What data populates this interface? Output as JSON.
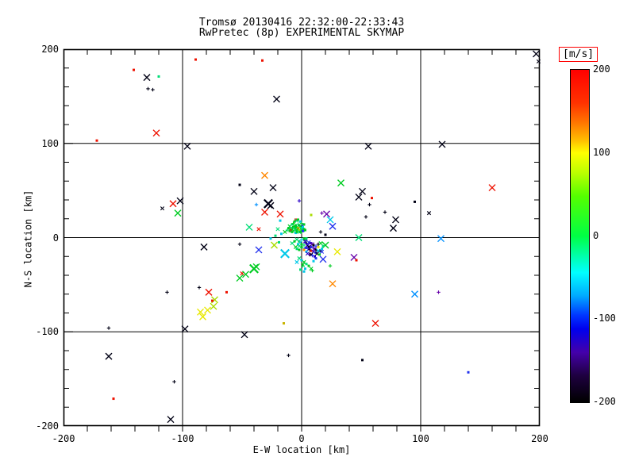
{
  "title": {
    "line1": "Tromsø 20130416 22:32:00-22:33:43",
    "line2": "RwPretec (8p) EXPERIMENTAL SKYMAP"
  },
  "chart_data": {
    "type": "scatter",
    "title": "Tromsø 20130416 22:32:00-22:33:43 / RwPretec (8p) EXPERIMENTAL SKYMAP",
    "xlabel": "E-W location [km]",
    "ylabel": "N-S location [km]",
    "xlim": [
      -200,
      200
    ],
    "ylim": [
      -200,
      200
    ],
    "xticks": [
      -200,
      -100,
      0,
      100,
      200
    ],
    "yticks": [
      -200,
      -100,
      0,
      100,
      200
    ],
    "minor_tick_km": 20,
    "grid": true,
    "background": "#ffffff",
    "axis_color": "#000000",
    "colorbar": {
      "label": "[m/s]",
      "ticks": [
        200,
        100,
        0,
        -100,
        -200
      ],
      "min": -200,
      "max": 200,
      "label_box_color": "#ff0000",
      "stops": [
        [
          "0%",
          "#ff0000"
        ],
        [
          "10%",
          "#ff3300"
        ],
        [
          "16%",
          "#ff7700"
        ],
        [
          "21%",
          "#ffbb00"
        ],
        [
          "25%",
          "#ffff00"
        ],
        [
          "31%",
          "#bbff00"
        ],
        [
          "38%",
          "#55ff00"
        ],
        [
          "50%",
          "#00ff44"
        ],
        [
          "56%",
          "#00ffaa"
        ],
        [
          "61%",
          "#00ffff"
        ],
        [
          "68%",
          "#00aaff"
        ],
        [
          "74%",
          "#0033ff"
        ],
        [
          "78%",
          "#0000ee"
        ],
        [
          "85%",
          "#4400aa"
        ],
        [
          "92%",
          "#1e0040"
        ],
        [
          "100%",
          "#000000"
        ]
      ]
    },
    "palette": {
      "r": "#ee1100",
      "or": "#ff8800",
      "ye": "#e8e800",
      "yg": "#aadd00",
      "dy": "#c8b400",
      "g": "#00cc22",
      "sg": "#00dd77",
      "cy": "#00c8e8",
      "db": "#0090ff",
      "b": "#2233ee",
      "nv": "#2a00c8",
      "vi": "#6600aa",
      "bk": "#000014"
    },
    "point_format": [
      "x_km",
      "y_km",
      "color_key",
      "marker(x|+|d)",
      "size(1-3)"
    ],
    "points": [
      [
        -89,
        189,
        "r",
        "d",
        1
      ],
      [
        -33,
        188,
        "r",
        "d",
        1
      ],
      [
        197,
        195,
        "bk",
        "x",
        2
      ],
      [
        199,
        187,
        "bk",
        "x",
        1
      ],
      [
        -141,
        178,
        "r",
        "d",
        1
      ],
      [
        -130,
        170,
        "bk",
        "x",
        2
      ],
      [
        -120,
        171,
        "sg",
        "d",
        1
      ],
      [
        -129,
        158,
        "bk",
        "+",
        1
      ],
      [
        -125,
        157,
        "bk",
        "+",
        1
      ],
      [
        -21,
        147,
        "bk",
        "x",
        2
      ],
      [
        -122,
        111,
        "r",
        "x",
        2
      ],
      [
        -172,
        103,
        "r",
        "d",
        1
      ],
      [
        -96,
        97,
        "bk",
        "x",
        2
      ],
      [
        56,
        97,
        "bk",
        "x",
        2
      ],
      [
        118,
        99,
        "bk",
        "x",
        2
      ],
      [
        -31,
        66,
        "or",
        "x",
        2
      ],
      [
        -52,
        56,
        "bk",
        "d",
        1
      ],
      [
        -40,
        49,
        "bk",
        "x",
        2
      ],
      [
        -24,
        53,
        "bk",
        "x",
        2
      ],
      [
        -38,
        35,
        "db",
        "+",
        1
      ],
      [
        -28,
        36,
        "bk",
        "x",
        3
      ],
      [
        -26,
        34,
        "bk",
        "x",
        2
      ],
      [
        -31,
        27,
        "r",
        "x",
        2
      ],
      [
        -18,
        25,
        "r",
        "x",
        2
      ],
      [
        -117,
        31,
        "bk",
        "x",
        1
      ],
      [
        -108,
        36,
        "r",
        "x",
        2
      ],
      [
        -102,
        39,
        "bk",
        "x",
        2
      ],
      [
        -104,
        26,
        "g",
        "x",
        2
      ],
      [
        33,
        58,
        "g",
        "x",
        2
      ],
      [
        160,
        53,
        "r",
        "x",
        2
      ],
      [
        51,
        49,
        "bk",
        "x",
        2
      ],
      [
        48,
        43,
        "bk",
        "x",
        2
      ],
      [
        59,
        42,
        "r",
        "d",
        1
      ],
      [
        57,
        35,
        "bk",
        "+",
        1
      ],
      [
        95,
        38,
        "bk",
        "d",
        1
      ],
      [
        70,
        27,
        "bk",
        "+",
        1
      ],
      [
        54,
        22,
        "bk",
        "+",
        1
      ],
      [
        79,
        19,
        "bk",
        "x",
        2
      ],
      [
        107,
        26,
        "bk",
        "x",
        1
      ],
      [
        77,
        10,
        "bk",
        "x",
        2
      ],
      [
        117,
        -1,
        "db",
        "x",
        2
      ],
      [
        48,
        0,
        "sg",
        "x",
        2
      ],
      [
        20,
        -8,
        "g",
        "x",
        2
      ],
      [
        30,
        -15,
        "ye",
        "x",
        2
      ],
      [
        44,
        -21,
        "vi",
        "x",
        2
      ],
      [
        46,
        -24,
        "r",
        "d",
        1
      ],
      [
        18,
        -23,
        "b",
        "x",
        2
      ],
      [
        24,
        -30,
        "g",
        "+",
        1
      ],
      [
        26,
        -49,
        "or",
        "x",
        2
      ],
      [
        95,
        -60,
        "db",
        "x",
        2
      ],
      [
        115,
        -58,
        "vi",
        "+",
        1
      ],
      [
        62,
        -91,
        "r",
        "x",
        2
      ],
      [
        -82,
        -10,
        "bk",
        "x",
        2
      ],
      [
        -52,
        -7,
        "bk",
        "+",
        1
      ],
      [
        -36,
        -13,
        "b",
        "x",
        2
      ],
      [
        -23,
        -8,
        "yg",
        "x",
        2
      ],
      [
        -14,
        -17,
        "cy",
        "x",
        3
      ],
      [
        -40,
        -33,
        "g",
        "x",
        3
      ],
      [
        -38,
        -31,
        "g",
        "x",
        2
      ],
      [
        -50,
        -38,
        "r",
        "x",
        1
      ],
      [
        -47,
        -39,
        "g",
        "x",
        2
      ],
      [
        -52,
        -43,
        "g",
        "x",
        2
      ],
      [
        -86,
        -53,
        "bk",
        "+",
        1
      ],
      [
        -78,
        -58,
        "r",
        "x",
        2
      ],
      [
        -63,
        -58,
        "r",
        "d",
        1
      ],
      [
        -73,
        -66,
        "yg",
        "x",
        2
      ],
      [
        -75,
        -67,
        "r",
        "d",
        1
      ],
      [
        -74,
        -73,
        "yg",
        "x",
        2
      ],
      [
        -79,
        -77,
        "ye",
        "x",
        2
      ],
      [
        -85,
        -79,
        "ye",
        "x",
        2
      ],
      [
        -83,
        -84,
        "ye",
        "x",
        2
      ],
      [
        -113,
        -58,
        "bk",
        "+",
        1
      ],
      [
        -162,
        -96,
        "bk",
        "+",
        1
      ],
      [
        -98,
        -97,
        "bk",
        "x",
        2
      ],
      [
        -15,
        -91,
        "dy",
        "d",
        1
      ],
      [
        -48,
        -103,
        "bk",
        "x",
        2
      ],
      [
        -162,
        -126,
        "bk",
        "x",
        2
      ],
      [
        -11,
        -125,
        "bk",
        "+",
        1
      ],
      [
        -107,
        -153,
        "bk",
        "+",
        1
      ],
      [
        -158,
        -171,
        "r",
        "d",
        1
      ],
      [
        -110,
        -193,
        "bk",
        "x",
        2
      ],
      [
        51,
        -130,
        "bk",
        "d",
        1
      ],
      [
        140,
        -143,
        "b",
        "d",
        1
      ],
      [
        17,
        26,
        "vi",
        "+",
        1
      ],
      [
        21,
        25,
        "vi",
        "x",
        2
      ],
      [
        24,
        19,
        "cy",
        "x",
        2
      ],
      [
        26,
        12,
        "b",
        "x",
        2
      ],
      [
        8,
        24,
        "yg",
        "d",
        1
      ],
      [
        -5,
        19,
        "r",
        "d",
        1
      ],
      [
        -18,
        18,
        "cy",
        "d",
        1
      ],
      [
        -44,
        11,
        "sg",
        "x",
        2
      ],
      [
        -36,
        9,
        "r",
        "x",
        1
      ],
      [
        -2,
        39,
        "nv",
        "+",
        1
      ],
      [
        -14,
        6,
        "g",
        "x",
        1
      ],
      [
        -12,
        8,
        "sg",
        "+",
        1
      ],
      [
        -11,
        10,
        "g",
        "d",
        1
      ],
      [
        -10,
        12,
        "g",
        "x",
        1
      ],
      [
        -8,
        14,
        "sg",
        "d",
        1
      ],
      [
        -7,
        15,
        "g",
        "+",
        1
      ],
      [
        -6,
        17,
        "g",
        "d",
        1
      ],
      [
        -4,
        18,
        "sg",
        "x",
        1
      ],
      [
        -3,
        19,
        "g",
        "d",
        1
      ],
      [
        -1,
        17,
        "cy",
        "d",
        1
      ],
      [
        0,
        15,
        "g",
        "+",
        1
      ],
      [
        -9,
        10,
        "sg",
        "x",
        1
      ],
      [
        -7,
        11,
        "g",
        "d",
        1
      ],
      [
        -6,
        12,
        "g",
        "x",
        1
      ],
      [
        -5,
        13,
        "g",
        "d",
        1
      ],
      [
        -3,
        14,
        "sg",
        "+",
        1
      ],
      [
        -2,
        13,
        "g",
        "d",
        1
      ],
      [
        -1,
        12,
        "g",
        "x",
        1
      ],
      [
        1,
        13,
        "b",
        "+",
        1
      ],
      [
        2,
        14,
        "g",
        "d",
        1
      ],
      [
        -10,
        7,
        "g",
        "d",
        1
      ],
      [
        -9,
        8,
        "r",
        "d",
        1
      ],
      [
        -8,
        9,
        "g",
        "x",
        1
      ],
      [
        -6,
        10,
        "sg",
        "d",
        1
      ],
      [
        -5,
        11,
        "g",
        "d",
        1
      ],
      [
        -4,
        11,
        "g",
        "x",
        1
      ],
      [
        -3,
        10,
        "or",
        "d",
        1
      ],
      [
        -1,
        9,
        "g",
        "+",
        1
      ],
      [
        0,
        10,
        "sg",
        "d",
        1
      ],
      [
        1,
        11,
        "cy",
        "d",
        1
      ],
      [
        -8,
        6,
        "g",
        "d",
        1
      ],
      [
        -7,
        7,
        "g",
        "x",
        1
      ],
      [
        -5,
        8,
        "sg",
        "d",
        1
      ],
      [
        -4,
        8,
        "g",
        "d",
        1
      ],
      [
        -3,
        9,
        "g",
        "+",
        1
      ],
      [
        -2,
        8,
        "yg",
        "d",
        1
      ],
      [
        0,
        7,
        "g",
        "d",
        1
      ],
      [
        1,
        8,
        "sg",
        "x",
        1
      ],
      [
        2,
        9,
        "g",
        "d",
        1
      ],
      [
        -5,
        5,
        "cy",
        "d",
        1
      ],
      [
        -4,
        6,
        "g",
        "d",
        1
      ],
      [
        -2,
        6,
        "sg",
        "x",
        1
      ],
      [
        -1,
        6,
        "g",
        "d",
        1
      ],
      [
        0,
        6,
        "g",
        "+",
        1
      ],
      [
        1,
        7,
        "b",
        "d",
        1
      ],
      [
        3,
        8,
        "g",
        "d",
        1
      ],
      [
        -20,
        9,
        "sg",
        "x",
        1
      ],
      [
        -17,
        4,
        "cy",
        "d",
        1
      ],
      [
        -26,
        -1,
        "cy",
        "d",
        1
      ],
      [
        -22,
        2,
        "sg",
        "d",
        1
      ],
      [
        -19,
        -5,
        "sg",
        "d",
        1
      ],
      [
        16,
        6,
        "bk",
        "+",
        1
      ],
      [
        20,
        3,
        "bk",
        "d",
        1
      ],
      [
        -4,
        -2,
        "sg",
        "x",
        1
      ],
      [
        -2,
        -4,
        "g",
        "d",
        1
      ],
      [
        -1,
        -5,
        "cy",
        "x",
        1
      ],
      [
        0,
        -7,
        "g",
        "d",
        1
      ],
      [
        2,
        -8,
        "sg",
        "+",
        1
      ],
      [
        -3,
        -7,
        "cy",
        "d",
        1
      ],
      [
        -2,
        -9,
        "sg",
        "x",
        1
      ],
      [
        0,
        -10,
        "g",
        "d",
        1
      ],
      [
        2,
        -12,
        "cy",
        "d",
        1
      ],
      [
        -5,
        -10,
        "g",
        "x",
        1
      ],
      [
        -4,
        -12,
        "sg",
        "d",
        1
      ],
      [
        -2,
        -13,
        "g",
        "d",
        1
      ],
      [
        3,
        -2,
        "g",
        "x",
        1
      ],
      [
        4,
        -1,
        "sg",
        "d",
        1
      ],
      [
        -6,
        -4,
        "g",
        "d",
        1
      ],
      [
        -8,
        -6,
        "sg",
        "x",
        1
      ],
      [
        0,
        -2,
        "cy",
        "+",
        1
      ],
      [
        2,
        -1,
        "g",
        "d",
        1
      ],
      [
        3,
        -4,
        "nv",
        "x",
        1
      ],
      [
        4,
        -6,
        "bk",
        "+",
        1
      ],
      [
        6,
        -5,
        "b",
        "x",
        1
      ],
      [
        8,
        -6,
        "nv",
        "d",
        1
      ],
      [
        9,
        -7,
        "vi",
        "x",
        1
      ],
      [
        10,
        -8,
        "bk",
        "d",
        1
      ],
      [
        12,
        -9,
        "b",
        "+",
        1
      ],
      [
        5,
        -8,
        "nv",
        "x",
        2
      ],
      [
        6,
        -10,
        "bk",
        "x",
        1
      ],
      [
        8,
        -10,
        "b",
        "d",
        1
      ],
      [
        10,
        -11,
        "nv",
        "+",
        1
      ],
      [
        11,
        -12,
        "vi",
        "x",
        1
      ],
      [
        12,
        -13,
        "bk",
        "d",
        1
      ],
      [
        14,
        -14,
        "cy",
        "x",
        1
      ],
      [
        4,
        -11,
        "b",
        "d",
        1
      ],
      [
        6,
        -12,
        "nv",
        "x",
        1
      ],
      [
        7,
        -13,
        "bk",
        "+",
        1
      ],
      [
        8,
        -14,
        "r",
        "d",
        1
      ],
      [
        10,
        -15,
        "nv",
        "x",
        1
      ],
      [
        12,
        -16,
        "b",
        "d",
        1
      ],
      [
        13,
        -17,
        "bk",
        "x",
        1
      ],
      [
        4,
        -15,
        "cy",
        "d",
        1
      ],
      [
        5,
        -17,
        "nv",
        "x",
        1
      ],
      [
        7,
        -18,
        "vi",
        "d",
        1
      ],
      [
        8,
        -18,
        "bk",
        "x",
        1
      ],
      [
        9,
        -19,
        "b",
        "+",
        1
      ],
      [
        11,
        -20,
        "nv",
        "d",
        1
      ],
      [
        2,
        -13,
        "or",
        "d",
        1
      ],
      [
        14,
        -10,
        "ye",
        "d",
        1
      ],
      [
        16,
        -14,
        "bk",
        "d",
        1
      ],
      [
        17,
        -12,
        "cy",
        "d",
        1
      ],
      [
        17,
        -15,
        "b",
        "x",
        1
      ],
      [
        15,
        -18,
        "g",
        "d",
        1
      ],
      [
        14,
        -7,
        "bk",
        "+",
        1
      ],
      [
        16,
        -6,
        "g",
        "x",
        1
      ],
      [
        18,
        -9,
        "sg",
        "d",
        1
      ],
      [
        -2,
        -22,
        "sg",
        "x",
        1
      ],
      [
        0,
        -24,
        "cy",
        "d",
        1
      ],
      [
        2,
        -26,
        "g",
        "x",
        1
      ],
      [
        4,
        -28,
        "sg",
        "d",
        1
      ],
      [
        -4,
        -26,
        "cy",
        "x",
        1
      ],
      [
        6,
        -30,
        "g",
        "d",
        1
      ],
      [
        1,
        -30,
        "sg",
        "+",
        1
      ],
      [
        3,
        -33,
        "cy",
        "d",
        1
      ],
      [
        8,
        -33,
        "g",
        "x",
        1
      ],
      [
        1,
        -29,
        "g",
        "x",
        1
      ],
      [
        9,
        -35,
        "g",
        "+",
        1
      ],
      [
        2,
        -36,
        "cy",
        "d",
        1
      ],
      [
        -1,
        -34,
        "sg",
        "d",
        1
      ],
      [
        10,
        -25,
        "cy",
        "d",
        1
      ],
      [
        12,
        -22,
        "b",
        "d",
        1
      ]
    ]
  }
}
